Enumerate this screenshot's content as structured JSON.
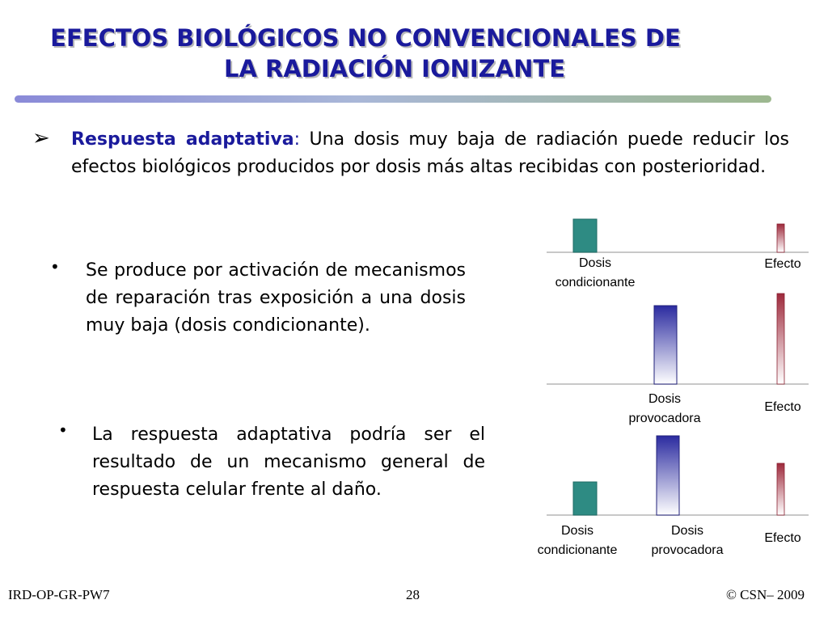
{
  "title": {
    "line1": "EFECTOS BIOLÓGICOS NO CONVENCIONALES DE",
    "line2": "LA RADIACIÓN IONIZANTE"
  },
  "main_point": {
    "bullet_icon": "arrow-bullet-icon",
    "term": "Respuesta adaptativa",
    "colon": ":",
    "text": " Una dosis muy baja de radiación puede reducir los efectos biológicos producidos por dosis más altas recibidas con posterioridad."
  },
  "bullets": [
    {
      "text": "Se produce por activación de mecanismos de reparación tras exposición a una dosis muy baja (dosis condicionante)."
    },
    {
      "text": "La respuesta adaptativa podría ser el resultado de un mecanismo general de respuesta celular frente al daño."
    }
  ],
  "diagram": {
    "rows": [
      {
        "labels": {
          "conditioning": [
            "Dosis",
            "condicionante"
          ],
          "effect": "Efecto"
        }
      },
      {
        "labels": {
          "challenge": [
            "Dosis",
            "provocadora"
          ],
          "effect": "Efecto"
        }
      },
      {
        "labels": {
          "conditioning": [
            "Dosis",
            "condicionante"
          ],
          "challenge": [
            "Dosis",
            "provocadora"
          ],
          "effect": "Efecto"
        }
      }
    ],
    "colors": {
      "conditioning": "#2e8b83",
      "challenge": "#2b2ba0",
      "effect": "#b0384a"
    }
  },
  "footer": {
    "left": "IRD-OP-GR-PW7",
    "page": "28",
    "right": "© CSN– 2009"
  }
}
